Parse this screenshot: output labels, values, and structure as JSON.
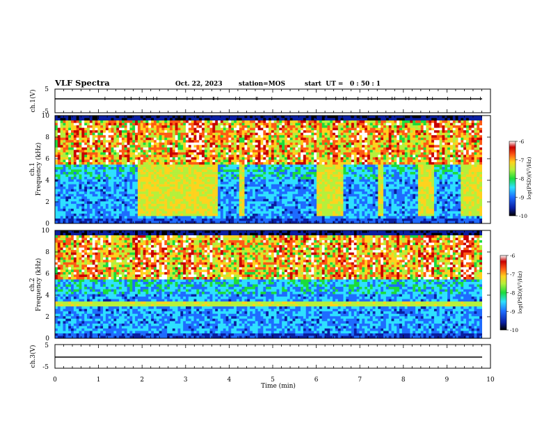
{
  "header": {
    "title": "VLF Spectra",
    "date": "Oct. 22, 2023",
    "station": "station=MOS",
    "start_ut": "start  UT =   0 : 50 : 1"
  },
  "colors": {
    "colormap": [
      "#000000",
      "#0a1ea0",
      "#1e6cff",
      "#2ee0ff",
      "#1bdc3c",
      "#b4f03c",
      "#ffd21e",
      "#ff5a14",
      "#c80000",
      "#ffffff"
    ],
    "trace": "#000000"
  },
  "chart_data": [
    {
      "id": "ch1-voltage",
      "type": "line",
      "ylabel": "ch.1(V)",
      "ylim": [
        -5,
        5
      ],
      "yticks": [
        "5",
        "-5"
      ],
      "x": [
        0,
        10
      ],
      "values": [
        0,
        0
      ],
      "xlim": [
        0,
        10
      ]
    },
    {
      "id": "ch1-spectrogram",
      "type": "heatmap",
      "ylabel_line1": "ch.1",
      "ylabel_line2": "Frequency (kHz)",
      "ylim": [
        0,
        10
      ],
      "yticks": [
        "0",
        "2",
        "4",
        "6",
        "8",
        "10"
      ],
      "xlim": [
        0,
        10
      ],
      "colorbar": {
        "label": "log(PSD)(V²/Hz)",
        "range": [
          -10,
          -6
        ],
        "ticks": [
          "-6",
          "-7",
          "-8",
          "-9",
          "-10"
        ]
      },
      "broadband_intervals_min": [
        [
          1.9,
          3.7
        ],
        [
          4.2,
          4.35
        ],
        [
          6.0,
          6.6
        ],
        [
          7.4,
          7.5
        ],
        [
          8.3,
          8.7
        ],
        [
          9.3,
          9.8
        ]
      ]
    },
    {
      "id": "ch2-spectrogram",
      "type": "heatmap",
      "ylabel_line1": "ch.2",
      "ylabel_line2": "Frequency (kHz)",
      "ylim": [
        0,
        10
      ],
      "yticks": [
        "0",
        "2",
        "4",
        "6",
        "8",
        "10"
      ],
      "xlim": [
        0,
        10
      ],
      "colorbar": {
        "label": "log(PSD)(V²/Hz)",
        "range": [
          -10,
          -6
        ],
        "ticks": [
          "-6",
          "-7",
          "-8",
          "-9",
          "-10"
        ]
      }
    },
    {
      "id": "ch3-voltage",
      "type": "line",
      "ylabel": "ch.3(V)",
      "ylim": [
        -5,
        5
      ],
      "yticks": [
        "5",
        "-5"
      ],
      "x": [
        0,
        10
      ],
      "values": [
        -1.5,
        -1.5
      ],
      "xlim": [
        0,
        10
      ],
      "xlabel": "Time (min)",
      "xticks": [
        "0",
        "1",
        "2",
        "3",
        "4",
        "5",
        "6",
        "7",
        "8",
        "9",
        "10"
      ]
    }
  ]
}
